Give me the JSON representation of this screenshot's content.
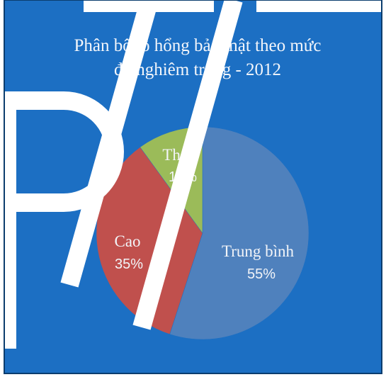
{
  "watermark": "PTIT",
  "colors": {
    "background": "#1c6fc3",
    "frame": "#0b3d6e",
    "watermark": "#ffffff",
    "label_light": "#f2f4f8"
  },
  "chart_data": {
    "type": "pie",
    "title_lines": [
      "Phân bố lỗ hổng bảo mật theo mức",
      "độ nghiêm trọng - 2012"
    ],
    "start_angle_deg": 0,
    "direction": "clockwise",
    "slices": [
      {
        "name": "Trung bình",
        "label": "55%",
        "value": 55,
        "color": "#4f81bd"
      },
      {
        "name": "Cao",
        "label": "35%",
        "value": 35,
        "color": "#c0504d"
      },
      {
        "name": "Thấp",
        "label": "10%",
        "value": 10,
        "color": "#9bbb59"
      }
    ],
    "legend": "none"
  }
}
